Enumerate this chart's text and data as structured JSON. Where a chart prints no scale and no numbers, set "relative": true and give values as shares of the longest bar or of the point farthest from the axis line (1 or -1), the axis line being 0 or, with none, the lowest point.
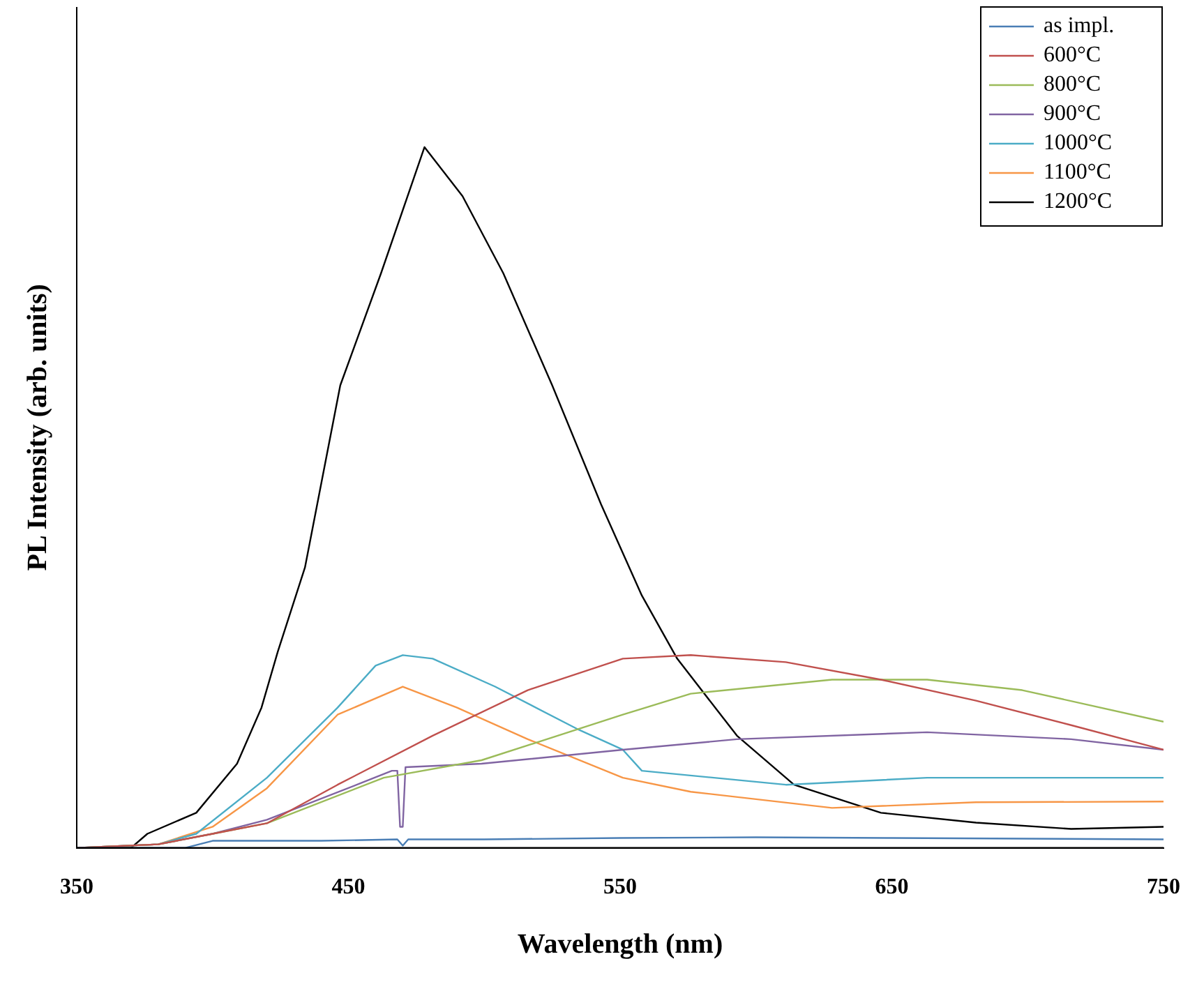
{
  "chart_data": {
    "type": "line",
    "xlabel": "Wavelength (nm)",
    "ylabel": "PL Intensity (arb. units)",
    "relative": true,
    "xlim": [
      350,
      750
    ],
    "xticks": [
      350,
      450,
      550,
      650,
      750
    ],
    "legend": "top right",
    "grid": false,
    "marker": "none",
    "line_style": "solid",
    "series": [
      {
        "name": "as impl.",
        "color": "#4a7eb5",
        "x": [
          350,
          390,
          400,
          440,
          468,
          470,
          472,
          500,
          550,
          600,
          650,
          700,
          750
        ],
        "values": [
          0,
          0,
          0.01,
          0.01,
          0.012,
          0.003,
          0.012,
          0.012,
          0.014,
          0.015,
          0.014,
          0.013,
          0.012
        ]
      },
      {
        "name": "600°C",
        "color": "#c0504d",
        "x": [
          350,
          380,
          400,
          420,
          446,
          481,
          516,
          551,
          576,
          611,
          646,
          681,
          716,
          750
        ],
        "values": [
          0,
          0.005,
          0.02,
          0.035,
          0.09,
          0.16,
          0.225,
          0.27,
          0.275,
          0.265,
          0.24,
          0.21,
          0.175,
          0.14
        ]
      },
      {
        "name": "800°C",
        "color": "#9bbb59",
        "x": [
          350,
          380,
          400,
          420,
          463,
          499,
          551,
          576,
          628,
          663,
          698,
          750
        ],
        "values": [
          0,
          0.005,
          0.02,
          0.035,
          0.1,
          0.125,
          0.19,
          0.22,
          0.24,
          0.24,
          0.225,
          0.18
        ]
      },
      {
        "name": "900°C",
        "color": "#8064a2",
        "x": [
          350,
          380,
          400,
          420,
          455,
          466,
          468,
          469,
          470,
          471,
          499,
          551,
          593,
          663,
          716,
          750
        ],
        "values": [
          0,
          0.005,
          0.02,
          0.04,
          0.093,
          0.11,
          0.11,
          0.03,
          0.03,
          0.115,
          0.12,
          0.14,
          0.155,
          0.165,
          0.155,
          0.14
        ]
      },
      {
        "name": "1000°C",
        "color": "#4bacc6",
        "x": [
          350,
          380,
          394,
          420,
          446,
          460,
          470,
          481,
          504,
          534,
          551,
          558,
          611,
          663,
          716,
          750
        ],
        "values": [
          0,
          0.005,
          0.02,
          0.1,
          0.2,
          0.26,
          0.275,
          0.27,
          0.23,
          0.17,
          0.14,
          0.11,
          0.09,
          0.1,
          0.1,
          0.1
        ]
      },
      {
        "name": "1100°C",
        "color": "#f79646",
        "x": [
          350,
          380,
          400,
          420,
          446,
          470,
          490,
          516,
          551,
          576,
          628,
          681,
          750
        ],
        "values": [
          0,
          0.005,
          0.03,
          0.085,
          0.19,
          0.23,
          0.2,
          0.155,
          0.1,
          0.08,
          0.057,
          0.065,
          0.066
        ]
      },
      {
        "name": "1200°C",
        "color": "#000000",
        "x": [
          350,
          370,
          376,
          394,
          409,
          418,
          424,
          434,
          447,
          462,
          478,
          492,
          507,
          525,
          543,
          558,
          571,
          593,
          614,
          646,
          681,
          716,
          750
        ],
        "values": [
          0,
          0,
          0.02,
          0.05,
          0.12,
          0.2,
          0.28,
          0.4,
          0.66,
          0.82,
          1,
          0.93,
          0.82,
          0.66,
          0.49,
          0.36,
          0.27,
          0.16,
          0.09,
          0.05,
          0.036,
          0.027,
          0.03
        ]
      }
    ]
  }
}
